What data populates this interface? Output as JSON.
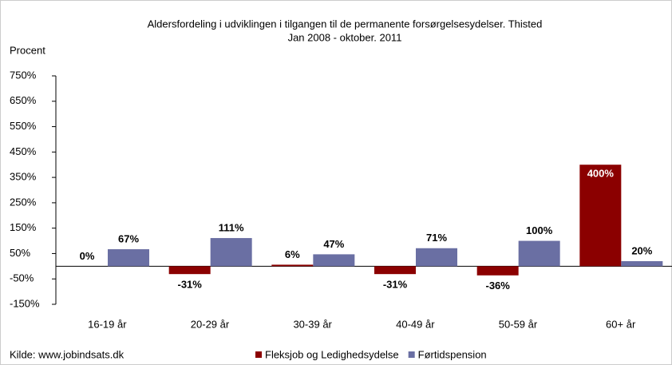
{
  "chart_data": {
    "type": "bar",
    "title": "Aldersfordeling i udviklingen i tilgangen til de permanente forsørgelsesydelser. Thisted",
    "subtitle": "Jan 2008 - oktober. 2011",
    "ylabel": "Procent",
    "source": "Kilde: www.jobindsats.dk",
    "categories": [
      "16-19 år",
      "20-29 år",
      "30-39 år",
      "40-49 år",
      "50-59 år",
      "60+ år"
    ],
    "series": [
      {
        "name": "Fleksjob og Ledighedsydelse",
        "color": "#8b0000",
        "values": [
          0,
          -31,
          6,
          -31,
          -36,
          400
        ],
        "value_labels": [
          "0%",
          "-31%",
          "6%",
          "-31%",
          "-36%",
          "400%"
        ]
      },
      {
        "name": "Førtidspension",
        "color": "#6a6fa3",
        "values": [
          67,
          111,
          47,
          71,
          100,
          20
        ],
        "value_labels": [
          "67%",
          "111%",
          "47%",
          "71%",
          "100%",
          "20%"
        ]
      }
    ],
    "ylim": [
      -150,
      750
    ],
    "yticks": [
      {
        "value": -150,
        "label": "-150%"
      },
      {
        "value": -50,
        "label": "-50%"
      },
      {
        "value": 50,
        "label": "50%"
      },
      {
        "value": 150,
        "label": "150%"
      },
      {
        "value": 250,
        "label": "250%"
      },
      {
        "value": 350,
        "label": "350%"
      },
      {
        "value": 450,
        "label": "450%"
      },
      {
        "value": 550,
        "label": "550%"
      },
      {
        "value": 650,
        "label": "650%"
      },
      {
        "value": 750,
        "label": "750%"
      }
    ],
    "grid": false,
    "legend": "bottom"
  }
}
